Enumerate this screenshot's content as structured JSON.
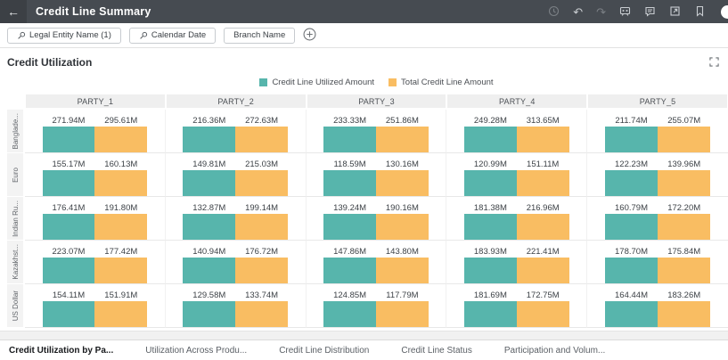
{
  "header": {
    "title": "Credit Line Summary",
    "back_icon": "←",
    "undo_icon": "↶",
    "redo_icon": "↷",
    "icon_names": [
      "back-icon",
      "history-icon",
      "undo-icon",
      "redo-icon",
      "present-icon",
      "comment-icon",
      "open-in-new-icon",
      "bookmark-icon",
      "avatar"
    ]
  },
  "filters": {
    "pills": [
      {
        "label": "Legal Entity Name (1)",
        "pinned": true
      },
      {
        "label": "Calendar Date",
        "pinned": true
      },
      {
        "label": "Branch Name",
        "pinned": false
      }
    ],
    "add_icon": "plus-circle-icon"
  },
  "panel": {
    "title": "Credit Utilization",
    "expand_icon": "expand-icon"
  },
  "colors": {
    "topbar": "#464B51",
    "utilized": "#57B5AC",
    "total": "#F9BD62"
  },
  "chart_data": {
    "type": "bar",
    "title": "Credit Utilization",
    "layout": "trellis-grid",
    "legend_position": "top-center",
    "legend": [
      {
        "name": "Credit Line Utilized Amount",
        "color": "#57B5AC"
      },
      {
        "name": "Total Credit Line Amount",
        "color": "#F9BD62"
      }
    ],
    "unit": "M",
    "columns": [
      "PARTY_1",
      "PARTY_2",
      "PARTY_3",
      "PARTY_4",
      "PARTY_5"
    ],
    "rows": [
      {
        "label": "Banglade...",
        "cells": [
          {
            "utilized": "271.94M",
            "total": "295.61M"
          },
          {
            "utilized": "216.36M",
            "total": "272.63M"
          },
          {
            "utilized": "233.33M",
            "total": "251.86M"
          },
          {
            "utilized": "249.28M",
            "total": "313.65M"
          },
          {
            "utilized": "211.74M",
            "total": "255.07M"
          }
        ]
      },
      {
        "label": "Euro",
        "cells": [
          {
            "utilized": "155.17M",
            "total": "160.13M"
          },
          {
            "utilized": "149.81M",
            "total": "215.03M"
          },
          {
            "utilized": "118.59M",
            "total": "130.16M"
          },
          {
            "utilized": "120.99M",
            "total": "151.11M"
          },
          {
            "utilized": "122.23M",
            "total": "139.96M"
          }
        ]
      },
      {
        "label": "Indian Ru...",
        "cells": [
          {
            "utilized": "176.41M",
            "total": "191.80M"
          },
          {
            "utilized": "132.87M",
            "total": "199.14M"
          },
          {
            "utilized": "139.24M",
            "total": "190.16M"
          },
          {
            "utilized": "181.38M",
            "total": "216.96M"
          },
          {
            "utilized": "160.79M",
            "total": "172.20M"
          }
        ]
      },
      {
        "label": "Kazakhst...",
        "cells": [
          {
            "utilized": "223.07M",
            "total": "177.42M"
          },
          {
            "utilized": "140.94M",
            "total": "176.72M"
          },
          {
            "utilized": "147.86M",
            "total": "143.80M"
          },
          {
            "utilized": "183.93M",
            "total": "221.41M"
          },
          {
            "utilized": "178.70M",
            "total": "175.84M"
          }
        ]
      },
      {
        "label": "US Dollar",
        "cells": [
          {
            "utilized": "154.11M",
            "total": "151.91M"
          },
          {
            "utilized": "129.58M",
            "total": "133.74M"
          },
          {
            "utilized": "124.85M",
            "total": "117.79M"
          },
          {
            "utilized": "181.69M",
            "total": "172.75M"
          },
          {
            "utilized": "164.44M",
            "total": "183.26M"
          }
        ]
      }
    ]
  },
  "tabs": [
    {
      "label": "Credit Utilization by Pa...",
      "active": true
    },
    {
      "label": "Utilization Across Produ...",
      "active": false
    },
    {
      "label": "Credit Line Distribution",
      "active": false
    },
    {
      "label": "Credit Line Status",
      "active": false
    },
    {
      "label": "Participation and Volum...",
      "active": false
    }
  ]
}
